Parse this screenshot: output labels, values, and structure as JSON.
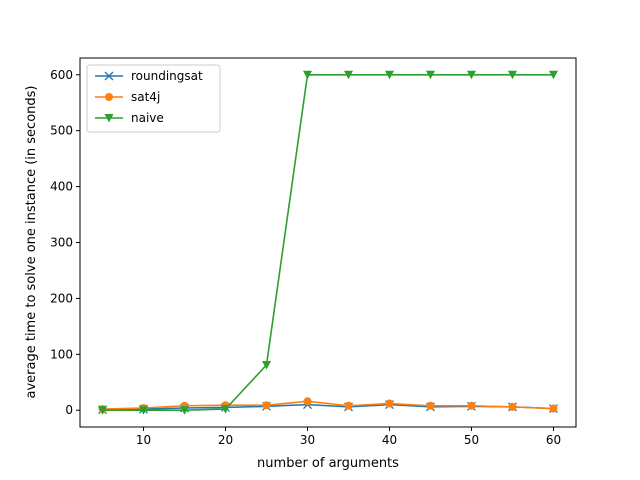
{
  "chart_data": {
    "type": "line",
    "title": "",
    "xlabel": "number of arguments",
    "ylabel": "average time to solve one instance (in seconds)",
    "xlim": [
      2.25,
      62.75
    ],
    "ylim": [
      -30,
      630
    ],
    "xticks": [
      10,
      20,
      30,
      40,
      50,
      60
    ],
    "yticks": [
      0,
      100,
      200,
      300,
      400,
      500,
      600
    ],
    "grid": false,
    "legend_position": "top-left",
    "x": [
      5,
      10,
      15,
      20,
      25,
      30,
      35,
      40,
      45,
      50,
      55,
      60
    ],
    "series": [
      {
        "name": "roundingsat",
        "color": "#1f77b4",
        "marker": "x",
        "values": [
          1,
          2,
          4,
          5,
          7,
          10,
          6,
          10,
          6,
          7,
          6,
          3
        ]
      },
      {
        "name": "sat4j",
        "color": "#ff7f0e",
        "marker": "circle",
        "values": [
          2,
          4,
          8,
          9,
          9,
          16,
          8,
          12,
          8,
          8,
          6,
          3
        ]
      },
      {
        "name": "naive",
        "color": "#2ca02c",
        "marker": "triangle-down",
        "values": [
          0,
          0,
          0,
          2,
          81,
          600,
          600,
          600,
          600,
          600,
          600,
          600
        ]
      }
    ]
  }
}
